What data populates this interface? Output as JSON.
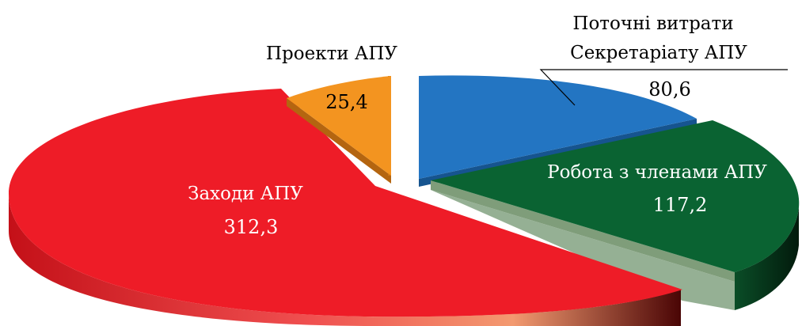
{
  "chart_data": {
    "type": "pie",
    "style": "3d-exploded",
    "unit": "",
    "title": "",
    "slices": [
      {
        "label_lines": [
          "Поточні витрати",
          "Секретаріату АПУ"
        ],
        "value": 80.6,
        "value_text": "80,6",
        "color": "#2375c2"
      },
      {
        "label_lines": [
          "Робота з членами АПУ"
        ],
        "value": 117.2,
        "value_text": "117,2",
        "color": "#0a6332"
      },
      {
        "label_lines": [
          "Заходи АПУ"
        ],
        "value": 312.3,
        "value_text": "312,3",
        "color": "#ee1c27"
      },
      {
        "label_lines": [
          "Проекти АПУ"
        ],
        "value": 25.4,
        "value_text": "25,4",
        "color": "#f39420"
      }
    ]
  }
}
